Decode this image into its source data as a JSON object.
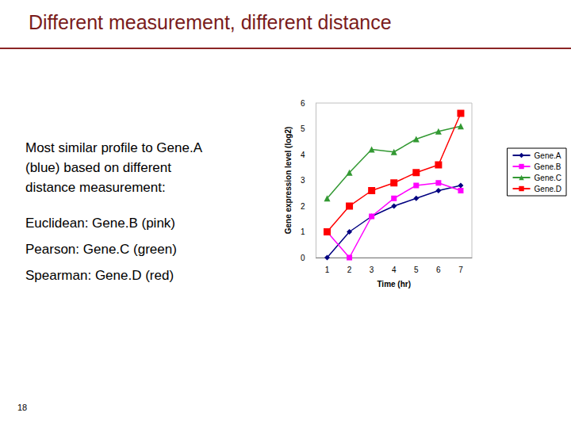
{
  "slide": {
    "title": "Different measurement, different distance",
    "intro_lines": [
      "Most similar profile to Gene.A",
      "(blue) based on different",
      "distance measurement:"
    ],
    "items": [
      "Euclidean:  Gene.B (pink)",
      "Pearson: Gene.C (green)",
      "Spearman: Gene.D (red)"
    ],
    "page_number": "18"
  },
  "chart_data": {
    "type": "line",
    "x_label": "Time (hr)",
    "y_label": "Gene expression level (log2)",
    "categories": [
      "1",
      "2",
      "3",
      "4",
      "5",
      "6",
      "7"
    ],
    "series": [
      {
        "name": "Gene.A",
        "color": "#000080",
        "marker": "diamond",
        "values": [
          0,
          1,
          1.6,
          2,
          2.3,
          2.6,
          2.8
        ]
      },
      {
        "name": "Gene.B",
        "color": "#ff00ff",
        "marker": "square",
        "values": [
          1,
          0,
          1.6,
          2.3,
          2.8,
          2.9,
          2.6
        ]
      },
      {
        "name": "Gene.C",
        "color": "#339933",
        "marker": "triangle",
        "values": [
          2.3,
          3.3,
          4.2,
          4.1,
          4.6,
          4.9,
          5.1
        ]
      },
      {
        "name": "Gene.D",
        "color": "#ff0000",
        "marker": "square",
        "values": [
          1,
          2,
          2.6,
          2.9,
          3.3,
          3.6,
          5.6
        ]
      }
    ],
    "ylim": [
      0,
      6
    ],
    "yticks": [
      0,
      1,
      2,
      3,
      4,
      5,
      6
    ],
    "grid": false,
    "legend": "right"
  }
}
